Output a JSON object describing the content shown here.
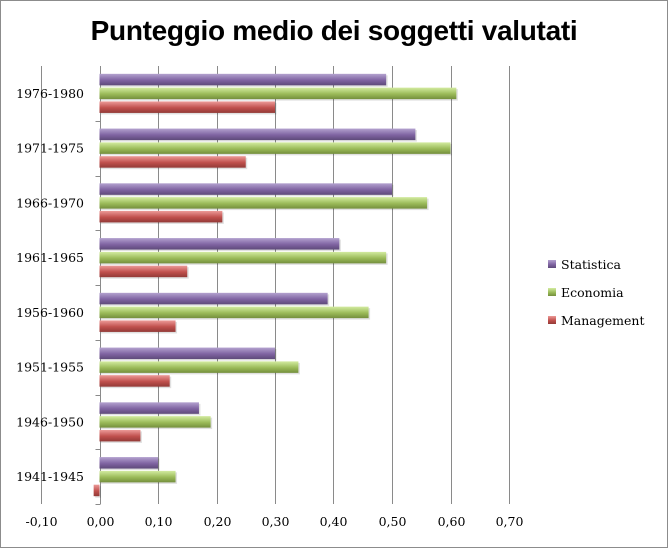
{
  "chart_data": {
    "type": "bar",
    "orientation": "horizontal",
    "title": "Punteggio medio dei soggetti valutati",
    "categories": [
      "1941-1945",
      "1946-1950",
      "1951-1955",
      "1956-1960",
      "1961-1965",
      "1966-1970",
      "1971-1975",
      "1976-1980"
    ],
    "series": [
      {
        "name": "Statistica",
        "color": "#8064A2",
        "values": [
          0.1,
          0.17,
          0.3,
          0.39,
          0.41,
          0.5,
          0.54,
          0.49
        ]
      },
      {
        "name": "Economia",
        "color": "#9BBB59",
        "values": [
          0.13,
          0.19,
          0.34,
          0.46,
          0.49,
          0.56,
          0.6,
          0.61
        ]
      },
      {
        "name": "Management",
        "color": "#C0504D",
        "values": [
          -0.01,
          0.07,
          0.12,
          0.13,
          0.15,
          0.21,
          0.25,
          0.3
        ]
      }
    ],
    "xlim": [
      -0.1,
      0.7
    ],
    "x_ticks": [
      "-0,10",
      "0,00",
      "0,10",
      "0,20",
      "0,30",
      "0,40",
      "0,50",
      "0,60",
      "0,70"
    ],
    "grid": "vertical major",
    "legend_position": "right",
    "xlabel": "",
    "ylabel": ""
  }
}
